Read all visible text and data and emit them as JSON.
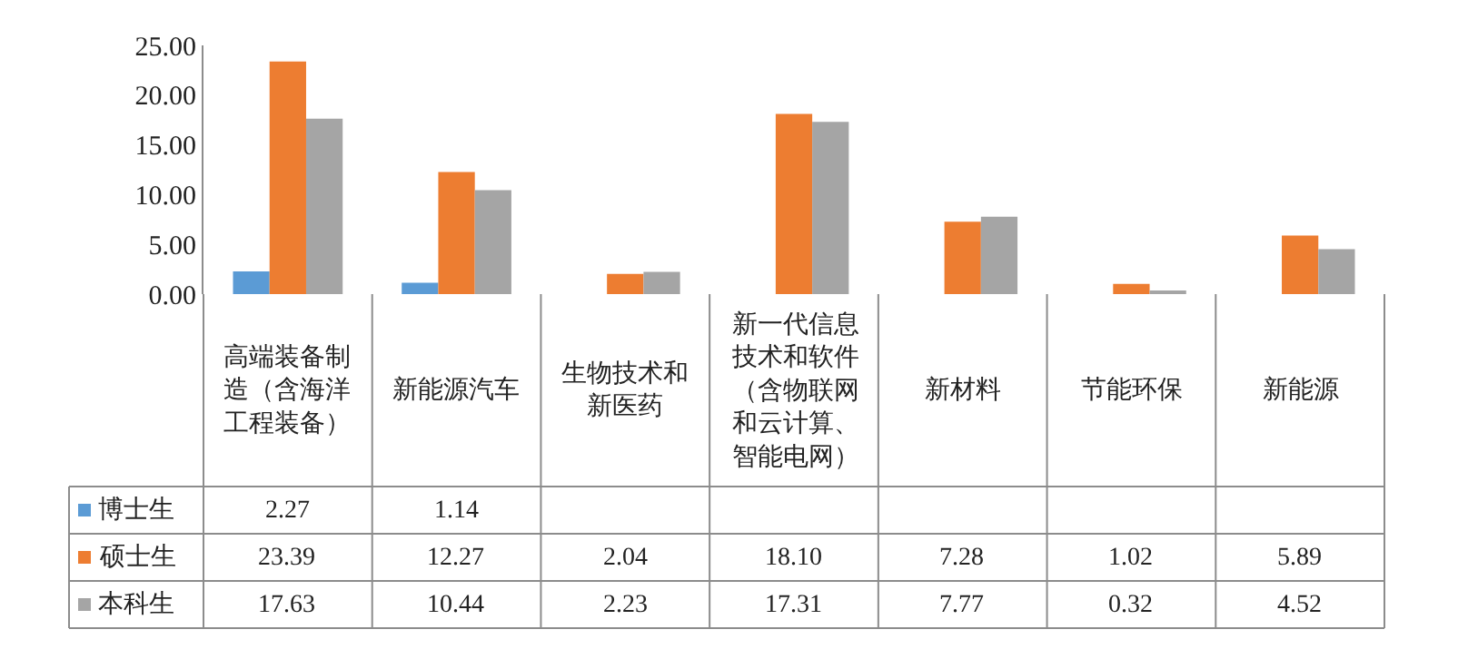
{
  "chart_data": {
    "type": "bar",
    "categories": [
      "高端装备制造（含海洋工程装备）",
      "新能源汽车",
      "生物技术和新医药",
      "新一代信息技术和软件（含物联网和云计算、智能电网）",
      "新材料",
      "节能环保",
      "新能源"
    ],
    "series": [
      {
        "name": "博士生",
        "color": "#5b9bd5",
        "values": [
          2.27,
          1.14,
          null,
          null,
          null,
          null,
          null
        ],
        "value_labels": [
          "2.27",
          "1.14",
          null,
          null,
          null,
          null,
          null
        ]
      },
      {
        "name": "硕士生",
        "color": "#ed7d31",
        "values": [
          23.39,
          12.27,
          2.04,
          18.1,
          7.28,
          1.02,
          5.89
        ],
        "value_labels": [
          "23.39",
          "12.27",
          "2.04",
          "18.10",
          "7.28",
          "1.02",
          "5.89"
        ]
      },
      {
        "name": "本科生",
        "color": "#a5a5a5",
        "values": [
          17.63,
          10.44,
          2.23,
          17.31,
          7.77,
          0.32,
          4.52
        ],
        "value_labels": [
          "17.63",
          "10.44",
          "2.23",
          "17.31",
          "7.77",
          "0.32",
          "4.52"
        ]
      }
    ],
    "ylim": [
      0,
      25
    ],
    "yticks": [
      {
        "value": 0,
        "label": "0.00"
      },
      {
        "value": 5,
        "label": "5.00"
      },
      {
        "value": 10,
        "label": "10.00"
      },
      {
        "value": 15,
        "label": "15.00"
      },
      {
        "value": 20,
        "label": "20.00"
      },
      {
        "value": 25,
        "label": "25.00"
      }
    ],
    "grid": false,
    "legend": "bottom left"
  }
}
